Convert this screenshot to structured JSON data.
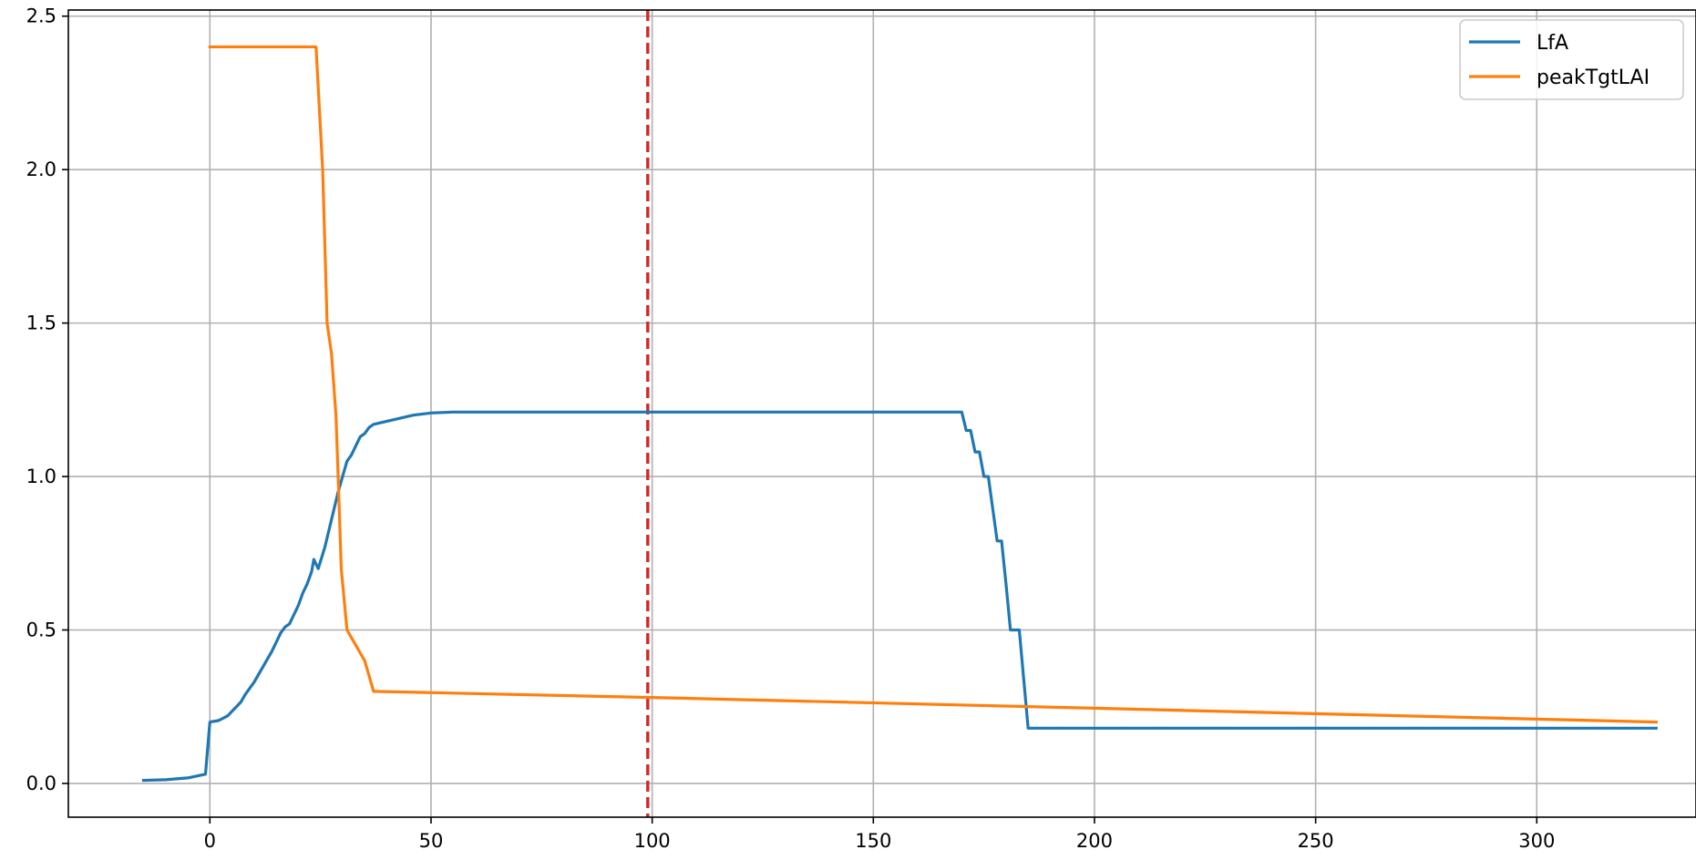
{
  "chart_data": {
    "type": "line",
    "xlim": [
      -32,
      336
    ],
    "ylim": [
      -0.11,
      2.52
    ],
    "xticks": [
      0,
      50,
      100,
      150,
      200,
      250,
      300
    ],
    "yticks": [
      0.0,
      0.5,
      1.0,
      1.5,
      2.0,
      2.5
    ],
    "xtick_labels": [
      "0",
      "50",
      "100",
      "150",
      "200",
      "250",
      "300"
    ],
    "ytick_labels": [
      "0.0",
      "0.5",
      "1.0",
      "1.5",
      "2.0",
      "2.5"
    ],
    "grid": true,
    "legend_position": "top-right",
    "vline": {
      "x": 99,
      "color": "#d62728",
      "style": "dashed"
    },
    "series": [
      {
        "name": "LfA",
        "color": "#1f77b4",
        "points": [
          [
            -15,
            0.01
          ],
          [
            -10,
            0.012
          ],
          [
            -5,
            0.018
          ],
          [
            -1,
            0.03
          ],
          [
            0,
            0.2
          ],
          [
            2,
            0.205
          ],
          [
            4,
            0.22
          ],
          [
            6,
            0.25
          ],
          [
            7,
            0.265
          ],
          [
            8,
            0.29
          ],
          [
            10,
            0.33
          ],
          [
            12,
            0.38
          ],
          [
            14,
            0.43
          ],
          [
            16,
            0.49
          ],
          [
            17,
            0.51
          ],
          [
            18,
            0.52
          ],
          [
            20,
            0.58
          ],
          [
            21,
            0.62
          ],
          [
            22,
            0.65
          ],
          [
            23,
            0.69
          ],
          [
            23.5,
            0.73
          ],
          [
            24.5,
            0.7
          ],
          [
            26,
            0.77
          ],
          [
            27,
            0.83
          ],
          [
            28,
            0.89
          ],
          [
            29,
            0.95
          ],
          [
            30,
            1.0
          ],
          [
            31,
            1.05
          ],
          [
            32,
            1.07
          ],
          [
            33,
            1.1
          ],
          [
            34,
            1.13
          ],
          [
            35,
            1.14
          ],
          [
            36,
            1.16
          ],
          [
            37,
            1.17
          ],
          [
            40,
            1.18
          ],
          [
            43,
            1.19
          ],
          [
            46,
            1.2
          ],
          [
            50,
            1.207
          ],
          [
            55,
            1.21
          ],
          [
            100,
            1.21
          ],
          [
            150,
            1.21
          ],
          [
            170,
            1.21
          ],
          [
            171,
            1.15
          ],
          [
            172,
            1.15
          ],
          [
            173,
            1.08
          ],
          [
            174,
            1.08
          ],
          [
            175,
            1.0
          ],
          [
            176,
            1.0
          ],
          [
            178,
            0.79
          ],
          [
            179,
            0.79
          ],
          [
            180,
            0.65
          ],
          [
            181,
            0.5
          ],
          [
            183,
            0.5
          ],
          [
            185,
            0.18
          ],
          [
            250,
            0.18
          ],
          [
            327,
            0.18
          ]
        ]
      },
      {
        "name": "peakTgtLAI",
        "color": "#ff7f0e",
        "points": [
          [
            0,
            2.4
          ],
          [
            24,
            2.4
          ],
          [
            25.5,
            2.0
          ],
          [
            26.5,
            1.5
          ],
          [
            27.5,
            1.4
          ],
          [
            28.5,
            1.2
          ],
          [
            29,
            1.0
          ],
          [
            29.7,
            0.7
          ],
          [
            31,
            0.5
          ],
          [
            35,
            0.4
          ],
          [
            37,
            0.3
          ],
          [
            100,
            0.28
          ],
          [
            200,
            0.245
          ],
          [
            327,
            0.2
          ]
        ]
      }
    ]
  }
}
